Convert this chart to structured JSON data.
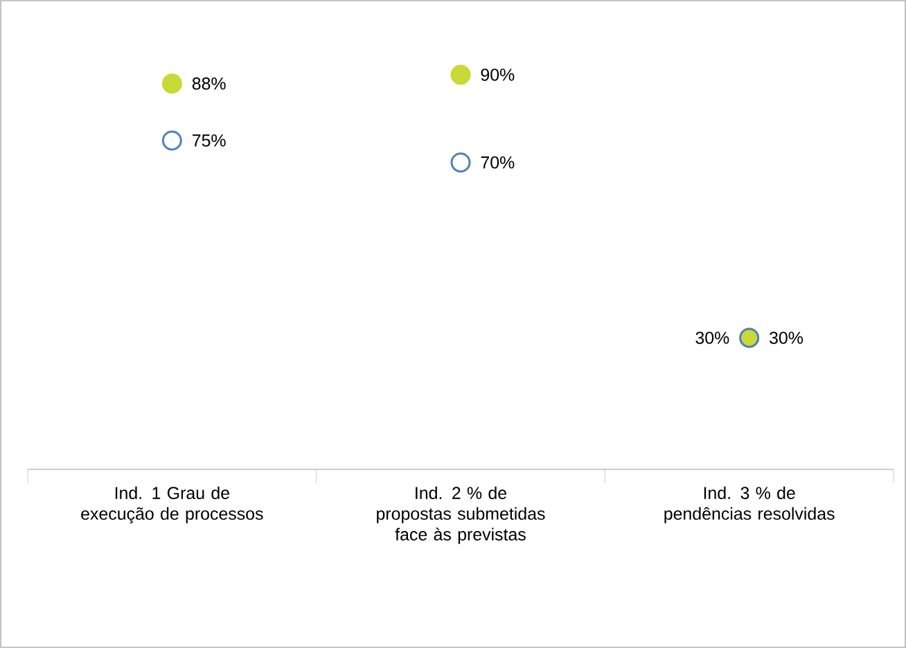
{
  "chart_data": {
    "type": "scatter",
    "categories": [
      "Ind. 1 Grau de execução de processos",
      "Ind. 2 % de propostas submetidas face às previstas",
      "Ind. 3 % de pendências resolvidas"
    ],
    "series": [
      {
        "color": "#c9d935",
        "values": [
          88,
          90,
          30
        ],
        "value_labels": [
          "88%",
          "90%",
          "30%"
        ]
      },
      {
        "color": "#4f81bd",
        "values": [
          75,
          70,
          30
        ],
        "value_labels": [
          "75%",
          "70%",
          "30%"
        ]
      }
    ],
    "tick_labels": "x",
    "marker": "circle",
    "grid": false
  }
}
